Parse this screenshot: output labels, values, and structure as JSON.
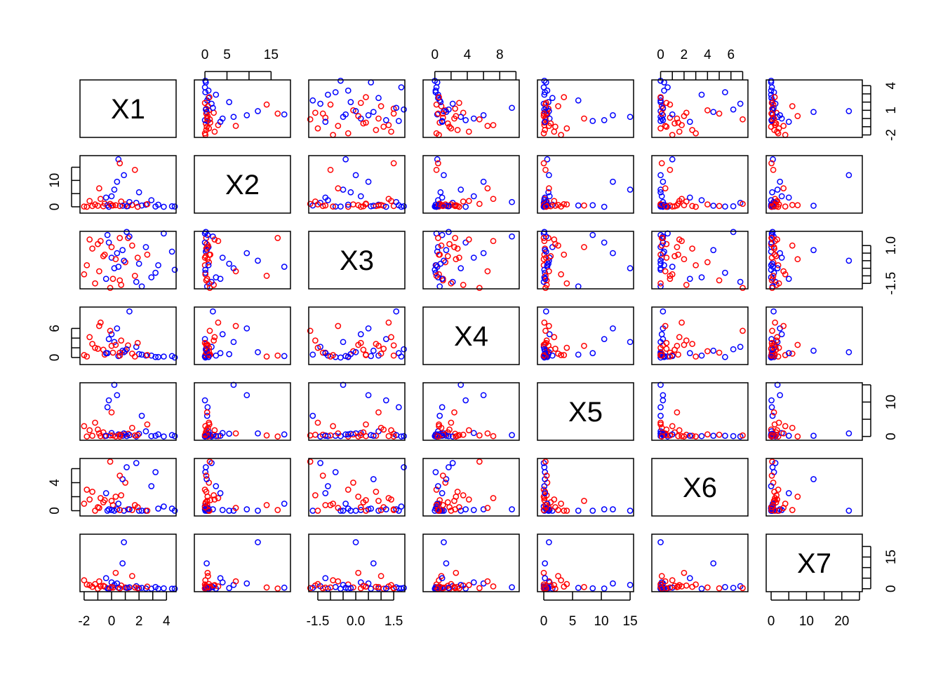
{
  "chart_data": {
    "type": "scatter",
    "subtype": "pairs-matrix",
    "title": "",
    "colors": {
      "b": "#0000ff",
      "r": "#ff0000"
    },
    "variables": [
      {
        "name": "X1",
        "range": [
          -2.3,
          4.7
        ],
        "ticks": [
          -2,
          -1,
          0,
          1,
          2,
          3,
          4
        ],
        "outer_labels": [
          "-2",
          "0",
          "2",
          "4"
        ],
        "outer_label_values": [
          -2,
          0,
          2,
          4
        ],
        "side_labels": [
          "-2",
          "1",
          "4"
        ],
        "side_label_values": [
          -2,
          1,
          4
        ],
        "side_ticks": [
          -2,
          -1,
          0,
          1,
          2,
          3,
          4
        ]
      },
      {
        "name": "X2",
        "range": [
          -2.4,
          19.4
        ],
        "ticks": [
          0,
          5,
          10,
          15
        ],
        "outer_labels": [
          "0",
          "5",
          "15"
        ],
        "outer_label_values": [
          0,
          5,
          15
        ],
        "side_labels": [
          "0",
          "10"
        ],
        "side_label_values": [
          0,
          10
        ],
        "side_ticks": [
          0,
          5,
          10,
          15
        ]
      },
      {
        "name": "X3",
        "range": [
          -1.86,
          1.94
        ],
        "ticks": [
          -1.5,
          -1,
          -0.5,
          0,
          0.5,
          1,
          1.5
        ],
        "outer_labels": [
          "-1.5",
          "0.0",
          "1.5"
        ],
        "outer_label_values": [
          -1.5,
          0,
          1.5
        ],
        "side_labels": [
          "-1.5",
          "1.0"
        ],
        "side_label_values": [
          -1.5,
          1.0
        ],
        "side_ticks": [
          -1.5,
          -1,
          -0.5,
          0,
          0.5,
          1
        ]
      },
      {
        "name": "X4",
        "range": [
          -1.45,
          10.4
        ],
        "ticks": [
          0,
          2,
          4,
          6,
          8,
          10
        ],
        "outer_labels": [
          "0",
          "4",
          "8"
        ],
        "outer_label_values": [
          0,
          4,
          8
        ],
        "side_labels": [
          "0",
          "6"
        ],
        "side_label_values": [
          0,
          6
        ],
        "side_ticks": [
          0,
          2,
          4,
          6
        ]
      },
      {
        "name": "X5",
        "range": [
          -1.1,
          15.6
        ],
        "ticks": [
          0,
          5,
          10,
          15
        ],
        "outer_labels": [
          "0",
          "5",
          "10",
          "15"
        ],
        "outer_label_values": [
          0,
          5,
          10,
          15
        ],
        "side_labels": [
          "0",
          "10"
        ],
        "side_label_values": [
          0,
          10
        ],
        "side_ticks": [
          0,
          5,
          10,
          15
        ]
      },
      {
        "name": "X6",
        "range": [
          -0.75,
          7.45
        ],
        "ticks": [
          0,
          1,
          2,
          3,
          4,
          5,
          6,
          7
        ],
        "outer_labels": [
          "0",
          "2",
          "4",
          "6"
        ],
        "outer_label_values": [
          0,
          2,
          4,
          6
        ],
        "side_labels": [
          "0",
          "4"
        ],
        "side_label_values": [
          0,
          4
        ],
        "side_ticks": [
          0,
          2,
          4,
          6
        ]
      },
      {
        "name": "X7",
        "range": [
          -1.4,
          25.8
        ],
        "ticks": [
          0,
          5,
          10,
          15,
          20,
          25
        ],
        "outer_labels": [
          "0",
          "10",
          "20"
        ],
        "outer_label_values": [
          0,
          10,
          20
        ],
        "side_labels": [
          "0",
          "15"
        ],
        "side_label_values": [
          0,
          15
        ],
        "side_ticks": [
          0,
          5,
          10,
          15,
          20
        ]
      }
    ],
    "observations": [
      [
        0.1,
        0.5,
        -1.2,
        1.0,
        0.3,
        0.8,
        0.5,
        "r"
      ],
      [
        -0.5,
        1.2,
        0.4,
        0.6,
        0.1,
        1.5,
        1.0,
        "r"
      ],
      [
        1.2,
        0.3,
        1.5,
        2.5,
        0.8,
        0.2,
        0.3,
        "r"
      ],
      [
        -1.8,
        0.0,
        -0.3,
        0.2,
        0.0,
        3.0,
        2.0,
        "r"
      ],
      [
        2.5,
        0.8,
        0.9,
        0.4,
        1.5,
        0.0,
        0.1,
        "b"
      ],
      [
        0.7,
        2.0,
        -1.6,
        3.5,
        0.5,
        2.2,
        1.5,
        "r"
      ],
      [
        -1.0,
        0.4,
        1.1,
        1.8,
        2.0,
        0.5,
        0.0,
        "r"
      ],
      [
        3.2,
        0.1,
        -0.8,
        0.1,
        0.2,
        5.5,
        0.8,
        "b"
      ],
      [
        0.0,
        4.0,
        0.2,
        4.8,
        1.0,
        0.1,
        3.0,
        "b"
      ],
      [
        -0.3,
        0.6,
        1.7,
        0.9,
        8.5,
        0.0,
        0.2,
        "b"
      ],
      [
        1.8,
        1.5,
        -1.4,
        2.2,
        0.0,
        6.8,
        1.2,
        "b"
      ],
      [
        4.4,
        0.2,
        0.6,
        0.3,
        0.4,
        0.3,
        0.0,
        "b"
      ],
      [
        -2.0,
        0.1,
        -0.9,
        0.5,
        3.0,
        1.0,
        4.0,
        "r"
      ],
      [
        0.4,
        9.5,
        0.5,
        6.0,
        12.0,
        0.2,
        2.5,
        "b"
      ],
      [
        1.0,
        0.9,
        -0.1,
        1.3,
        0.6,
        4.0,
        0.6,
        "r"
      ],
      [
        -0.8,
        3.0,
        1.3,
        7.2,
        0.1,
        1.8,
        1.1,
        "r"
      ],
      [
        2.2,
        0.5,
        -1.7,
        0.6,
        6.0,
        0.0,
        0.4,
        "b"
      ],
      [
        0.9,
        12.0,
        0.0,
        1.1,
        0.9,
        0.0,
        22.0,
        "b"
      ],
      [
        -1.4,
        0.3,
        0.8,
        2.8,
        0.2,
        2.7,
        0.9,
        "r"
      ],
      [
        3.8,
        0.0,
        1.8,
        0.2,
        0.0,
        0.6,
        0.2,
        "b"
      ],
      [
        0.2,
        6.5,
        -0.5,
        3.2,
        15.0,
        0.0,
        1.8,
        "b"
      ],
      [
        -0.1,
        1.1,
        -1.8,
        5.5,
        0.3,
        7.0,
        0.3,
        "r"
      ],
      [
        1.5,
        0.7,
        1.0,
        0.8,
        2.5,
        0.1,
        6.0,
        "r"
      ],
      [
        2.9,
        2.5,
        -1.1,
        0.4,
        0.1,
        3.5,
        0.0,
        "b"
      ],
      [
        -0.6,
        0.2,
        0.3,
        1.6,
        1.2,
        1.2,
        1.4,
        "r"
      ],
      [
        0.5,
        18.0,
        -0.4,
        0.3,
        0.6,
        1.0,
        0.5,
        "b"
      ],
      [
        1.3,
        1.8,
        1.6,
        9.5,
        0.4,
        0.2,
        0.7,
        "b"
      ],
      [
        -1.2,
        0.9,
        -1.5,
        2.0,
        4.0,
        0.0,
        2.2,
        "r"
      ],
      [
        0.8,
        0.4,
        0.7,
        1.4,
        0.2,
        4.5,
        12.0,
        "b"
      ],
      [
        2.0,
        5.5,
        -0.2,
        0.7,
        0.8,
        0.0,
        0.3,
        "b"
      ],
      [
        -0.2,
        0.0,
        1.2,
        3.8,
        10.5,
        0.2,
        0.1,
        "b"
      ],
      [
        1.7,
        14.0,
        -1.0,
        0.2,
        0.3,
        0.8,
        0.6,
        "r"
      ],
      [
        0.3,
        0.6,
        0.1,
        2.6,
        0.0,
        2.0,
        7.5,
        "r"
      ],
      [
        4.6,
        0.1,
        -0.6,
        0.0,
        0.1,
        0.0,
        0.0,
        "b"
      ],
      [
        -1.6,
        2.2,
        1.4,
        4.2,
        1.8,
        1.6,
        1.7,
        "r"
      ],
      [
        0.6,
        0.3,
        -1.3,
        1.0,
        0.5,
        5.0,
        0.2,
        "r"
      ],
      [
        2.6,
        1.0,
        0.4,
        0.5,
        3.5,
        0.0,
        1.0,
        "r"
      ],
      [
        -0.9,
        7.0,
        -0.7,
        6.5,
        0.9,
        0.4,
        3.5,
        "r"
      ],
      [
        1.1,
        0.2,
        1.9,
        1.7,
        0.1,
        6.2,
        0.4,
        "b"
      ],
      [
        3.4,
        0.8,
        -0.3,
        0.1,
        0.6,
        0.3,
        0.0,
        "b"
      ],
      [
        0.0,
        0.5,
        0.9,
        2.4,
        7.0,
        1.4,
        0.8,
        "r"
      ],
      [
        -0.4,
        3.5,
        -1.2,
        0.9,
        0.2,
        2.5,
        5.0,
        "b"
      ],
      [
        1.9,
        0.0,
        0.2,
        3.0,
        0.4,
        0.5,
        0.2,
        "r"
      ],
      [
        0.6,
        16.5,
        1.5,
        0.4,
        0.0,
        0.1,
        0.1,
        "r"
      ]
    ]
  }
}
